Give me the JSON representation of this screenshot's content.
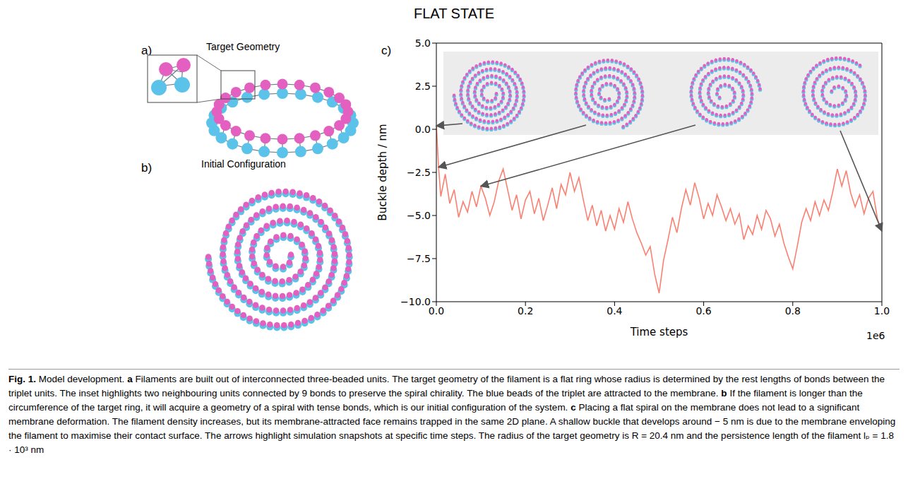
{
  "title": "FLAT STATE",
  "panels": [
    {
      "letter": "a)",
      "title": "Target Geometry"
    },
    {
      "letter": "b)",
      "title": "Initial Configuration"
    },
    {
      "letter": "c)"
    }
  ],
  "chart_data": {
    "type": "line",
    "xlabel": "Time steps",
    "ylabel": "Buckle depth / nm",
    "x_offset_label": "1e6",
    "xlim": [
      0,
      1
    ],
    "xticks": [
      {
        "value": 0,
        "label": "0.0"
      },
      {
        "value": 0.2,
        "label": "0.2"
      },
      {
        "value": 0.4,
        "label": "0.4"
      },
      {
        "value": 0.6,
        "label": "0.6"
      },
      {
        "value": 0.8,
        "label": "0.8"
      },
      {
        "value": 1,
        "label": "1.0"
      }
    ],
    "ylim": [
      -10,
      5
    ],
    "yticks": [
      {
        "value": -10,
        "label": "−10.0"
      },
      {
        "value": -7.5,
        "label": "−7.5"
      },
      {
        "value": -5,
        "label": "−5.0"
      },
      {
        "value": -2.5,
        "label": "−2.5"
      },
      {
        "value": 0,
        "label": "0.0"
      },
      {
        "value": 2.5,
        "label": "2.5"
      },
      {
        "value": 5,
        "label": "5.0"
      }
    ],
    "color": "#fa8072",
    "x": [
      0,
      0.005,
      0.01,
      0.02,
      0.03,
      0.04,
      0.05,
      0.06,
      0.07,
      0.08,
      0.09,
      0.1,
      0.11,
      0.12,
      0.13,
      0.14,
      0.15,
      0.16,
      0.17,
      0.18,
      0.19,
      0.2,
      0.21,
      0.22,
      0.23,
      0.24,
      0.25,
      0.26,
      0.27,
      0.28,
      0.29,
      0.3,
      0.31,
      0.32,
      0.33,
      0.34,
      0.35,
      0.36,
      0.37,
      0.38,
      0.39,
      0.4,
      0.41,
      0.42,
      0.43,
      0.44,
      0.45,
      0.46,
      0.47,
      0.48,
      0.49,
      0.5,
      0.51,
      0.52,
      0.53,
      0.54,
      0.55,
      0.56,
      0.57,
      0.58,
      0.59,
      0.6,
      0.61,
      0.62,
      0.63,
      0.64,
      0.65,
      0.66,
      0.67,
      0.68,
      0.69,
      0.7,
      0.71,
      0.72,
      0.73,
      0.74,
      0.75,
      0.76,
      0.77,
      0.78,
      0.79,
      0.8,
      0.81,
      0.82,
      0.83,
      0.84,
      0.85,
      0.86,
      0.87,
      0.88,
      0.89,
      0.9,
      0.91,
      0.92,
      0.93,
      0.94,
      0.95,
      0.96,
      0.97,
      0.98,
      0.99,
      1
    ],
    "values": [
      0.2,
      -2.2,
      -3.9,
      -2.6,
      -4.3,
      -3.5,
      -5.1,
      -4.2,
      -4.8,
      -3.6,
      -4.5,
      -3.3,
      -4.0,
      -5.0,
      -4.2,
      -3.0,
      -2.3,
      -3.5,
      -4.7,
      -3.8,
      -5.2,
      -4.1,
      -3.6,
      -4.9,
      -4.0,
      -5.3,
      -4.4,
      -3.4,
      -4.6,
      -3.2,
      -3.8,
      -2.5,
      -3.6,
      -2.8,
      -4.1,
      -5.3,
      -4.4,
      -5.6,
      -4.7,
      -5.9,
      -5.0,
      -5.8,
      -4.6,
      -5.4,
      -4.2,
      -5.2,
      -6.0,
      -6.6,
      -7.3,
      -6.8,
      -8.4,
      -9.5,
      -7.6,
      -6.4,
      -5.1,
      -6.0,
      -4.6,
      -3.5,
      -4.4,
      -3.1,
      -4.0,
      -5.2,
      -4.3,
      -5.0,
      -3.8,
      -4.5,
      -5.3,
      -4.6,
      -5.5,
      -4.9,
      -6.4,
      -5.6,
      -6.1,
      -5.0,
      -5.8,
      -4.7,
      -5.2,
      -6.2,
      -5.5,
      -6.6,
      -7.4,
      -8.1,
      -6.8,
      -5.4,
      -4.6,
      -5.3,
      -4.2,
      -5.0,
      -4.1,
      -4.7,
      -3.6,
      -2.3,
      -3.3,
      -2.4,
      -3.7,
      -4.5,
      -3.8,
      -4.9,
      -4.0,
      -3.6,
      -5.2,
      -5.9
    ]
  },
  "caption": {
    "figure": "Fig. 1.",
    "title": "Model development.",
    "parts": [
      {
        "letter": "a",
        "text": "Filaments are built out of interconnected three-beaded units. The target geometry of the filament is a flat ring whose radius is determined by the rest lengths of bonds between the triplet units. The inset highlights two neighbouring units connected by 9 bonds to preserve the spiral chirality. The blue beads of the triplet are attracted to the membrane."
      },
      {
        "letter": "b",
        "text": "If the filament is longer than the circumference of the target ring, it will acquire a geometry of a spiral with tense bonds, which is our initial configuration of the system."
      },
      {
        "letter": "c",
        "text": "Placing a flat spiral on the membrane does not lead to a significant membrane deformation. The filament density increases, but its membrane-attracted face remains trapped in the same 2D plane. A shallow buckle that develops around − 5 nm is due to the membrane enveloping the filament to maximise their contact surface. The arrows highlight simulation snapshots at specific time steps. The radius of the target geometry is R = 20.4 nm and the persistence length of the filament lₚ = 1.8 · 10³ nm"
      }
    ]
  }
}
